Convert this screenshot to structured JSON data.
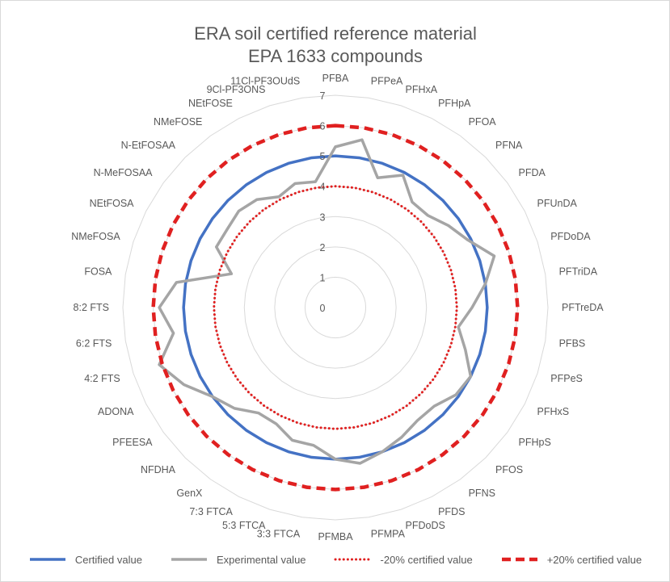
{
  "chart_data": {
    "type": "radar",
    "title": [
      "ERA soil certified reference material",
      "EPA 1633 compounds"
    ],
    "categories": [
      "PFBA",
      "PFPeA",
      "PFHxA",
      "PFHpA",
      "PFOA",
      "PFNA",
      "PFDA",
      "PFUnDA",
      "PFDoDA",
      "PFTriDA",
      "PFTreDA",
      "PFBS",
      "PFPeS",
      "PFHxS",
      "PFHpS",
      "PFOS",
      "PFNS",
      "PFDS",
      "PFDoDS",
      "PFMPA",
      "PFMBA",
      "3:3 FTCA",
      "5:3 FTCA",
      "7:3 FTCA",
      "GenX",
      "NFDHA",
      "PFEESA",
      "ADONA",
      "4:2 FTS",
      "6:2 FTS",
      "8:2 FTS",
      "FOSA",
      "NMeFOSA",
      "NEtFOSA",
      "N-MeFOSAA",
      "N-EtFOSAA",
      "NMeFOSE",
      "NEtFOSE",
      "9Cl-PF3ONS",
      "11Cl-PF3OUdS"
    ],
    "radial_axis": {
      "min": 0,
      "max": 7,
      "ticks": [
        "0",
        "1",
        "2",
        "3",
        "4",
        "5",
        "6",
        "7"
      ]
    },
    "series": [
      {
        "name": "Certified value",
        "color": "#4472c4",
        "style": "solid",
        "values": [
          5.0,
          5.0,
          5.0,
          5.0,
          5.0,
          5.0,
          5.0,
          5.0,
          5.0,
          5.0,
          5.0,
          5.0,
          5.0,
          5.0,
          5.0,
          5.0,
          5.0,
          5.0,
          5.0,
          5.0,
          5.0,
          5.0,
          5.0,
          5.0,
          5.0,
          5.0,
          5.0,
          5.0,
          5.0,
          5.0,
          5.0,
          5.0,
          5.0,
          5.0,
          5.0,
          5.0,
          5.0,
          5.0,
          5.0,
          5.0
        ]
      },
      {
        "name": "Experimental value",
        "color": "#a5a5a5",
        "style": "solid",
        "values": [
          5.3,
          5.6,
          4.5,
          4.9,
          4.3,
          4.3,
          4.6,
          4.9,
          5.5,
          5.0,
          4.5,
          4.1,
          4.5,
          5.0,
          4.9,
          4.6,
          4.6,
          4.8,
          5.0,
          5.2,
          5.0,
          4.6,
          4.6,
          4.3,
          4.3,
          4.7,
          5.0,
          5.6,
          6.1,
          5.4,
          5.8,
          5.3,
          3.6,
          4.4,
          4.4,
          4.5,
          4.4,
          4.1,
          4.3,
          4.2
        ]
      },
      {
        "name": "-20% certified value",
        "color": "#e02020",
        "style": "dotted",
        "values": [
          4.0,
          4.0,
          4.0,
          4.0,
          4.0,
          4.0,
          4.0,
          4.0,
          4.0,
          4.0,
          4.0,
          4.0,
          4.0,
          4.0,
          4.0,
          4.0,
          4.0,
          4.0,
          4.0,
          4.0,
          4.0,
          4.0,
          4.0,
          4.0,
          4.0,
          4.0,
          4.0,
          4.0,
          4.0,
          4.0,
          4.0,
          4.0,
          4.0,
          4.0,
          4.0,
          4.0,
          4.0,
          4.0,
          4.0,
          4.0
        ]
      },
      {
        "name": "+20% certified value",
        "color": "#e02020",
        "style": "dashed",
        "values": [
          6.0,
          6.0,
          6.0,
          6.0,
          6.0,
          6.0,
          6.0,
          6.0,
          6.0,
          6.0,
          6.0,
          6.0,
          6.0,
          6.0,
          6.0,
          6.0,
          6.0,
          6.0,
          6.0,
          6.0,
          6.0,
          6.0,
          6.0,
          6.0,
          6.0,
          6.0,
          6.0,
          6.0,
          6.0,
          6.0,
          6.0,
          6.0,
          6.0,
          6.0,
          6.0,
          6.0,
          6.0,
          6.0,
          6.0,
          6.0
        ]
      }
    ],
    "grid": true,
    "legend": "bottom"
  }
}
